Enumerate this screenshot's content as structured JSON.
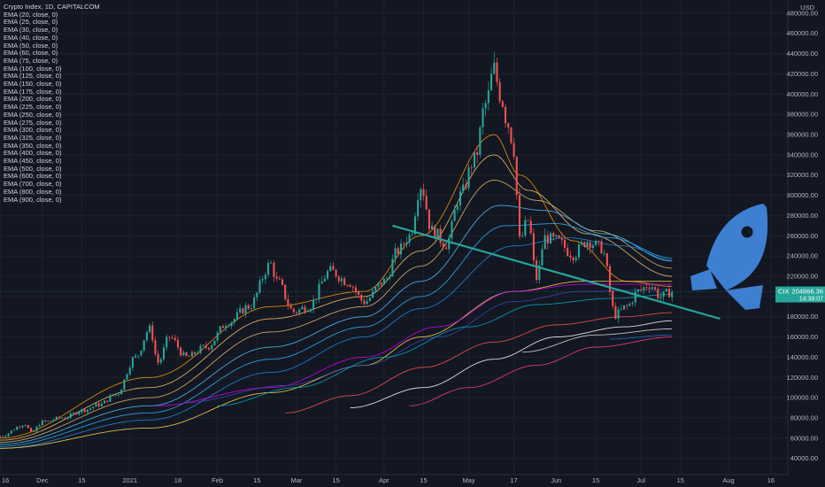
{
  "header": {
    "title": "Crypto Index, 1D, CAPITALCOM",
    "indicators": [
      "EMA (20, close, 0)",
      "EMA (25, close, 0)",
      "EMA (30, close, 0)",
      "EMA (40, close, 0)",
      "EMA (50, close, 0)",
      "EMA (60, close, 0)",
      "EMA (75, close, 0)",
      "EMA (100, close, 0)",
      "EMA (125, close, 0)",
      "EMA (150, close, 0)",
      "EMA (175, close, 0)",
      "EMA (200, close, 0)",
      "EMA (225, close, 0)",
      "EMA (250, close, 0)",
      "EMA (275, close, 0)",
      "EMA (300, close, 0)",
      "EMA (325, close, 0)",
      "EMA (350, close, 0)",
      "EMA (400, close, 0)",
      "EMA (450, close, 0)",
      "EMA (500, close, 0)",
      "EMA (600, close, 0)",
      "EMA (700, close, 0)",
      "EMA (800, close, 0)",
      "EMA (900, close, 0)"
    ]
  },
  "colors": {
    "background": "#131722",
    "grid": "#1e222d",
    "up": "#26a69a",
    "down": "#ef5350",
    "trendline": "#26a69a",
    "price_tag": "#26a69a",
    "rocket": "#3d7fd1"
  },
  "chart_data": {
    "type": "candlestick",
    "currency": "USD",
    "y_ticks": [
      40000,
      60000,
      80000,
      100000,
      120000,
      140000,
      160000,
      180000,
      200000,
      220000,
      240000,
      260000,
      280000,
      300000,
      320000,
      340000,
      360000,
      380000,
      400000,
      420000,
      440000,
      460000,
      480000
    ],
    "y_tick_labels": [
      "40000.00",
      "60000.00",
      "80000.00",
      "100000.00",
      "120000.00",
      "140000.00",
      "160000.00",
      "180000.00",
      "200000.00",
      "220000.00",
      "240000.00",
      "260000.00",
      "280000.00",
      "300000.00",
      "320000.00",
      "340000.00",
      "360000.00",
      "380000.00",
      "400000.00",
      "420000.00",
      "440000.00",
      "460000.00",
      "480000.00"
    ],
    "ylim": [
      24000,
      493000
    ],
    "x_labels": [
      "16",
      "Dec",
      "15",
      "2021",
      "18",
      "Feb",
      "15",
      "Mar",
      "15",
      "Apr",
      "15",
      "May",
      "17",
      "Jun",
      "15",
      "Jul",
      "15",
      "Aug",
      "16"
    ],
    "x_label_dates": [
      "2020-11-16",
      "2020-12-01",
      "2020-12-15",
      "2021-01-01",
      "2021-01-18",
      "2021-02-01",
      "2021-02-15",
      "2021-03-01",
      "2021-03-15",
      "2021-04-01",
      "2021-04-15",
      "2021-05-01",
      "2021-05-17",
      "2021-06-01",
      "2021-06-15",
      "2021-07-01",
      "2021-07-15",
      "2021-08-01",
      "2021-08-16"
    ],
    "xlim": [
      "2020-11-16",
      "2021-08-22"
    ],
    "price_tag_symbol": "CIX",
    "price_tag_value": "204666.36",
    "price_tag_subtext": "14:39:07",
    "last_price": 204666,
    "trendline": {
      "start": [
        "2021-04-04",
        270000
      ],
      "end": [
        "2021-07-29",
        178000
      ]
    },
    "close_anchors": [
      [
        "2020-11-16",
        62000
      ],
      [
        "2020-11-25",
        74000
      ],
      [
        "2020-11-27",
        65000
      ],
      [
        "2020-12-01",
        76000
      ],
      [
        "2020-12-08",
        80000
      ],
      [
        "2020-12-16",
        88000
      ],
      [
        "2020-12-21",
        93000
      ],
      [
        "2020-12-27",
        103000
      ],
      [
        "2021-01-03",
        140000
      ],
      [
        "2021-01-08",
        168000
      ],
      [
        "2021-01-11",
        135000
      ],
      [
        "2021-01-15",
        160000
      ],
      [
        "2021-01-21",
        140000
      ],
      [
        "2021-01-28",
        150000
      ],
      [
        "2021-02-05",
        175000
      ],
      [
        "2021-02-12",
        190000
      ],
      [
        "2021-02-20",
        232000
      ],
      [
        "2021-02-22",
        215000
      ],
      [
        "2021-02-28",
        185000
      ],
      [
        "2021-03-05",
        190000
      ],
      [
        "2021-03-13",
        225000
      ],
      [
        "2021-03-19",
        215000
      ],
      [
        "2021-03-25",
        195000
      ],
      [
        "2021-04-01",
        215000
      ],
      [
        "2021-04-06",
        245000
      ],
      [
        "2021-04-10",
        260000
      ],
      [
        "2021-04-14",
        310000
      ],
      [
        "2021-04-18",
        265000
      ],
      [
        "2021-04-23",
        252000
      ],
      [
        "2021-04-28",
        300000
      ],
      [
        "2021-05-03",
        335000
      ],
      [
        "2021-05-07",
        390000
      ],
      [
        "2021-05-10",
        425000
      ],
      [
        "2021-05-12",
        400000
      ],
      [
        "2021-05-15",
        370000
      ],
      [
        "2021-05-17",
        345000
      ],
      [
        "2021-05-19",
        255000
      ],
      [
        "2021-05-22",
        275000
      ],
      [
        "2021-05-25",
        218000
      ],
      [
        "2021-05-28",
        258000
      ],
      [
        "2021-06-01",
        255000
      ],
      [
        "2021-06-07",
        242000
      ],
      [
        "2021-06-12",
        255000
      ],
      [
        "2021-06-17",
        248000
      ],
      [
        "2021-06-22",
        182000
      ],
      [
        "2021-06-26",
        190000
      ],
      [
        "2021-06-30",
        205000
      ],
      [
        "2021-07-04",
        212000
      ],
      [
        "2021-07-08",
        200000
      ],
      [
        "2021-07-12",
        205000
      ]
    ],
    "ema_curves": [
      {
        "color": "#ff9800",
        "points": [
          [
            "2020-11-16",
            60000
          ],
          [
            "2021-01-08",
            120000
          ],
          [
            "2021-02-20",
            190000
          ],
          [
            "2021-03-25",
            205000
          ],
          [
            "2021-04-14",
            260000
          ],
          [
            "2021-05-10",
            360000
          ],
          [
            "2021-05-19",
            320000
          ],
          [
            "2021-06-07",
            255000
          ],
          [
            "2021-06-26",
            215000
          ],
          [
            "2021-07-12",
            210000
          ]
        ]
      },
      {
        "color": "#f7c16b",
        "points": [
          [
            "2020-11-16",
            58000
          ],
          [
            "2021-01-08",
            110000
          ],
          [
            "2021-02-20",
            178000
          ],
          [
            "2021-03-25",
            200000
          ],
          [
            "2021-04-14",
            245000
          ],
          [
            "2021-05-10",
            340000
          ],
          [
            "2021-05-22",
            305000
          ],
          [
            "2021-06-12",
            262000
          ],
          [
            "2021-07-12",
            220000
          ]
        ]
      },
      {
        "color": "#e0b96b",
        "points": [
          [
            "2020-11-16",
            56000
          ],
          [
            "2021-01-08",
            100000
          ],
          [
            "2021-02-20",
            165000
          ],
          [
            "2021-03-25",
            190000
          ],
          [
            "2021-04-14",
            230000
          ],
          [
            "2021-05-10",
            315000
          ],
          [
            "2021-05-25",
            295000
          ],
          [
            "2021-06-15",
            265000
          ],
          [
            "2021-07-12",
            228000
          ]
        ]
      },
      {
        "color": "#4fc3f7",
        "points": [
          [
            "2020-11-16",
            54000
          ],
          [
            "2021-01-08",
            92000
          ],
          [
            "2021-02-20",
            150000
          ],
          [
            "2021-03-25",
            180000
          ],
          [
            "2021-04-14",
            215000
          ],
          [
            "2021-05-12",
            290000
          ],
          [
            "2021-05-28",
            285000
          ],
          [
            "2021-06-18",
            262000
          ],
          [
            "2021-07-12",
            235000
          ]
        ]
      },
      {
        "color": "#29b6f6",
        "points": [
          [
            "2020-11-16",
            52000
          ],
          [
            "2021-01-08",
            85000
          ],
          [
            "2021-02-20",
            138000
          ],
          [
            "2021-03-25",
            170000
          ],
          [
            "2021-04-14",
            200000
          ],
          [
            "2021-05-14",
            270000
          ],
          [
            "2021-06-01",
            272000
          ],
          [
            "2021-06-20",
            258000
          ],
          [
            "2021-07-12",
            238000
          ]
        ]
      },
      {
        "color": "#1e88e5",
        "points": [
          [
            "2020-11-16",
            50000
          ],
          [
            "2021-01-08",
            78000
          ],
          [
            "2021-02-20",
            125000
          ],
          [
            "2021-03-25",
            160000
          ],
          [
            "2021-04-14",
            188000
          ],
          [
            "2021-05-17",
            250000
          ],
          [
            "2021-06-05",
            258000
          ],
          [
            "2021-06-25",
            250000
          ],
          [
            "2021-07-12",
            236000
          ]
        ]
      },
      {
        "color": "#ffd54f",
        "points": [
          [
            "2020-11-16",
            50000
          ],
          [
            "2021-01-08",
            70000
          ],
          [
            "2021-02-20",
            105000
          ],
          [
            "2021-03-25",
            132000
          ],
          [
            "2021-04-14",
            160000
          ],
          [
            "2021-05-17",
            205000
          ],
          [
            "2021-06-10",
            215000
          ],
          [
            "2021-07-12",
            215000
          ]
        ]
      },
      {
        "color": "#d500f9",
        "points": [
          [
            "2021-01-10",
            92000
          ],
          [
            "2021-02-20",
            110000
          ],
          [
            "2021-03-25",
            140000
          ],
          [
            "2021-04-20",
            170000
          ],
          [
            "2021-05-17",
            205000
          ],
          [
            "2021-06-10",
            212000
          ],
          [
            "2021-07-12",
            212000
          ]
        ]
      },
      {
        "color": "#3949ab",
        "points": [
          [
            "2021-01-20",
            95000
          ],
          [
            "2021-02-25",
            112000
          ],
          [
            "2021-03-25",
            132000
          ],
          [
            "2021-04-20",
            160000
          ],
          [
            "2021-05-17",
            195000
          ],
          [
            "2021-06-10",
            205000
          ],
          [
            "2021-07-12",
            207000
          ]
        ]
      },
      {
        "color": "#00acc1",
        "points": [
          [
            "2021-02-01",
            92000
          ],
          [
            "2021-03-01",
            110000
          ],
          [
            "2021-04-01",
            140000
          ],
          [
            "2021-05-01",
            170000
          ],
          [
            "2021-05-25",
            192000
          ],
          [
            "2021-06-20",
            198000
          ],
          [
            "2021-07-12",
            202000
          ]
        ]
      },
      {
        "color": "#ff5252",
        "points": [
          [
            "2021-02-25",
            85000
          ],
          [
            "2021-03-20",
            102000
          ],
          [
            "2021-04-15",
            130000
          ],
          [
            "2021-05-10",
            155000
          ],
          [
            "2021-06-01",
            172000
          ],
          [
            "2021-06-25",
            180000
          ],
          [
            "2021-07-12",
            184000
          ]
        ]
      },
      {
        "color": "#ffffff",
        "points": [
          [
            "2021-03-20",
            90000
          ],
          [
            "2021-04-15",
            110000
          ],
          [
            "2021-05-10",
            138000
          ],
          [
            "2021-06-01",
            160000
          ],
          [
            "2021-06-25",
            170000
          ],
          [
            "2021-07-12",
            176000
          ]
        ]
      },
      {
        "color": "#ff4081",
        "points": [
          [
            "2021-04-10",
            92000
          ],
          [
            "2021-05-01",
            110000
          ],
          [
            "2021-05-25",
            132000
          ],
          [
            "2021-06-15",
            150000
          ],
          [
            "2021-07-12",
            160000
          ]
        ]
      },
      {
        "color": "#e0e0e0",
        "points": [
          [
            "2021-05-20",
            145000
          ],
          [
            "2021-06-15",
            162000
          ],
          [
            "2021-07-12",
            168000
          ]
        ]
      },
      {
        "color": "#1976d2",
        "points": [
          [
            "2021-06-20",
            158000
          ],
          [
            "2021-07-12",
            162000
          ]
        ]
      }
    ]
  }
}
